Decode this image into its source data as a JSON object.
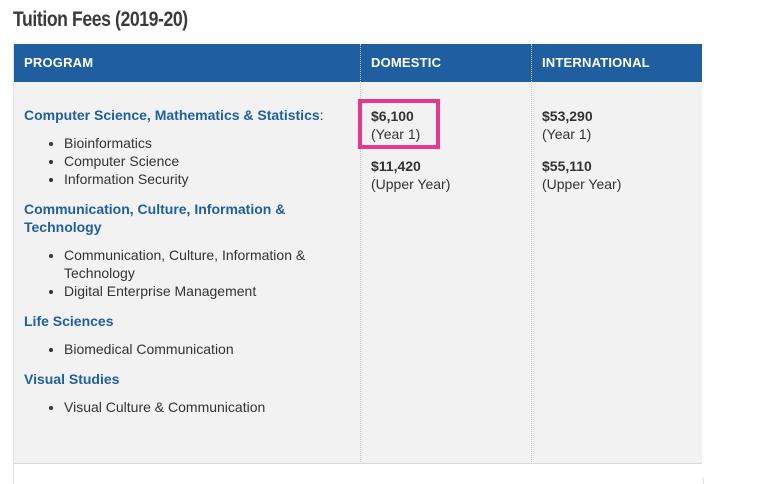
{
  "page": {
    "title": "Tuition Fees (2019-20)"
  },
  "table": {
    "headers": [
      "PROGRAM",
      "DOMESTIC",
      "INTERNATIONAL"
    ],
    "groups": [
      {
        "title": "Computer Science, Mathematics & Statistics",
        "suffix": ":",
        "items": [
          "Bioinformatics",
          "Computer Science",
          "Information Security"
        ]
      },
      {
        "title": "Communication, Culture, Information & Technology",
        "items": [
          "Communication, Culture, Information & Technology",
          "Digital Enterprise Management"
        ]
      },
      {
        "title": "Life Sciences",
        "items": [
          "Biomedical Communication"
        ]
      },
      {
        "title": "Visual Studies",
        "items": [
          "Visual Culture & Communication"
        ]
      }
    ],
    "domestic": [
      {
        "amount": "$6,100",
        "term": "(Year 1)"
      },
      {
        "amount": "$11,420",
        "term": "(Upper Year)"
      }
    ],
    "international": [
      {
        "amount": "$53,290",
        "term": "(Year 1)"
      },
      {
        "amount": "$55,110",
        "term": "(Upper Year)"
      }
    ]
  },
  "colors": {
    "header_bg": "#1f5f9f",
    "link": "#1f5f9f",
    "highlight_border": "#e6388f",
    "table_bg": "#f2f2f2"
  }
}
